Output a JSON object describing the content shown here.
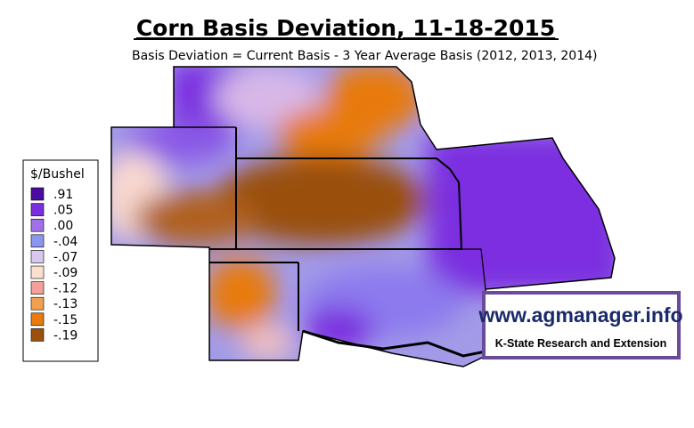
{
  "header": {
    "title": "Corn Basis Deviation, 11-18-2015",
    "subtitle": "Basis Deviation = Current Basis - 3 Year Average Basis (2012, 2013, 2014)"
  },
  "legend": {
    "title": "$/Bushel",
    "items": [
      {
        "label": ".91",
        "color": "#4b0b9e"
      },
      {
        "label": ".05",
        "color": "#7b2ee0"
      },
      {
        "label": ".00",
        "color": "#a070e8"
      },
      {
        "label": "-.04",
        "color": "#8c96ee"
      },
      {
        "label": "-.07",
        "color": "#d8c8f0"
      },
      {
        "label": "-.09",
        "color": "#fbe0d0"
      },
      {
        "label": "-.12",
        "color": "#f4a09a"
      },
      {
        "label": "-.13",
        "color": "#f0a050"
      },
      {
        "label": "-.15",
        "color": "#e87a10"
      },
      {
        "label": "-.19",
        "color": "#9a5010"
      }
    ]
  },
  "logo": {
    "url": "www.agmanager.info",
    "org": "K-State Research and Extension"
  }
}
